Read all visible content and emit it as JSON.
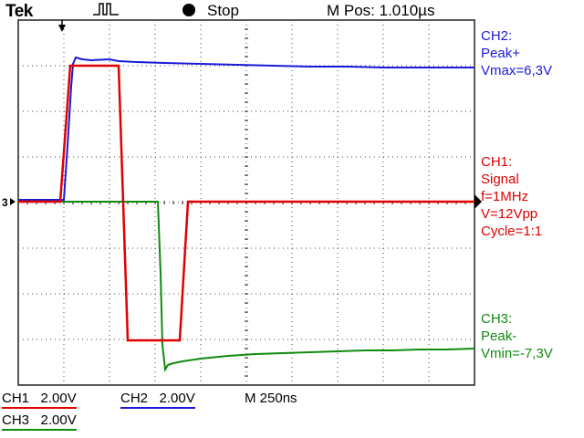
{
  "header": {
    "brand": "Tek",
    "trigger_icon": "pulse-trigger-icon",
    "run_state": "Stop",
    "position_label": "M Pos: 1.010µs"
  },
  "trigger": {
    "channel_marker": "3"
  },
  "annotations": {
    "ch2": {
      "title": "CH2:",
      "line1": "Peak+",
      "line2": "Vmax=6,3V",
      "color": "#1a1ad8"
    },
    "ch1": {
      "title": "CH1:",
      "line1": "Signal",
      "line2": "f=1MHz",
      "line3": "V=12Vpp",
      "line4": "Cycle=1:1",
      "color": "#e00000"
    },
    "ch3": {
      "title": "CH3:",
      "line1": "Peak-",
      "line2": "Vmin=-7,3V",
      "color": "#108a10"
    }
  },
  "readout": {
    "ch1": {
      "name": "CH1",
      "scale": "2.00V"
    },
    "ch2": {
      "name": "CH2",
      "scale": "2.00V"
    },
    "ch3": {
      "name": "CH3",
      "scale": "2.00V"
    },
    "timebase": "M 250ns"
  },
  "colors": {
    "ch1": "#e00000",
    "ch2": "#1a1ad8",
    "ch3": "#108a10",
    "grid": "#333333"
  }
}
